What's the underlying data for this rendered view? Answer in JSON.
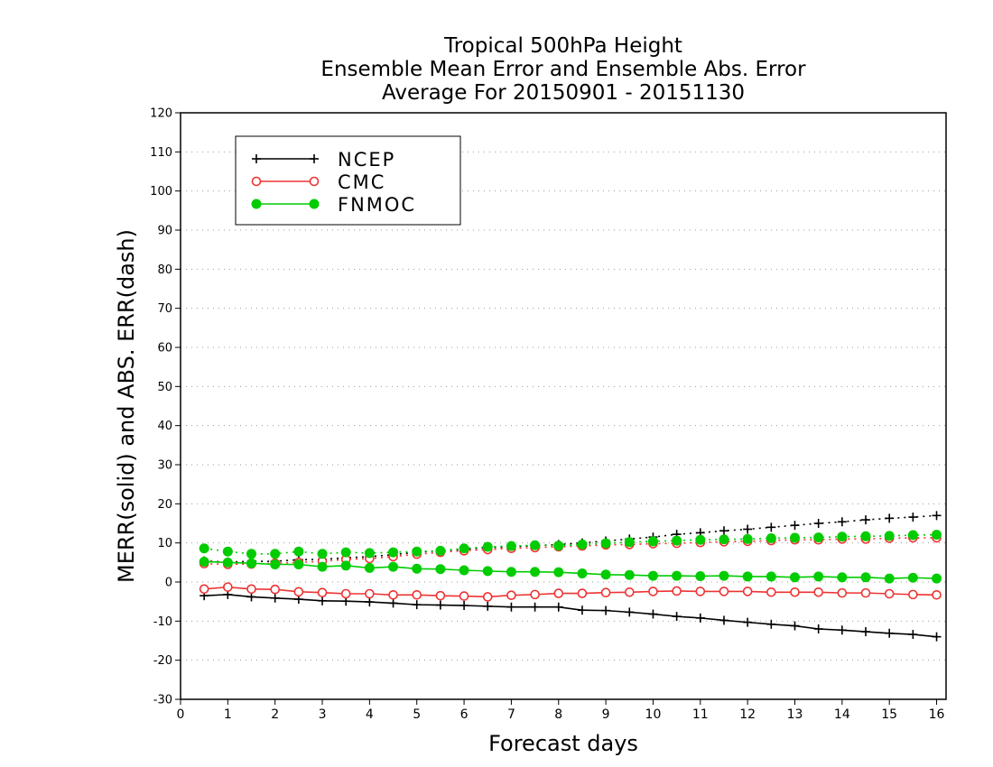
{
  "chart_data": {
    "type": "line",
    "title_lines": [
      "Tropical 500hPa Height",
      "Ensemble Mean Error and Ensemble Abs. Error",
      "Average For 20150901 - 20151130"
    ],
    "xlabel": "Forecast days",
    "ylabel": "MERR(solid) and ABS. ERR(dash)",
    "xlim": [
      0,
      16.2
    ],
    "ylim": [
      -30,
      120
    ],
    "xticks": [
      0,
      1,
      2,
      3,
      4,
      5,
      6,
      7,
      8,
      9,
      10,
      11,
      12,
      13,
      14,
      15,
      16
    ],
    "yticks": [
      -30,
      -20,
      -10,
      0,
      10,
      20,
      30,
      40,
      50,
      60,
      70,
      80,
      90,
      100,
      110,
      120
    ],
    "grid": "horizontal dotted",
    "legend_position": "top-left",
    "x": [
      0.5,
      1.0,
      1.5,
      2.0,
      2.5,
      3.0,
      3.5,
      4.0,
      4.5,
      5.0,
      5.5,
      6.0,
      6.5,
      7.0,
      7.5,
      8.0,
      8.5,
      9.0,
      9.5,
      10.0,
      10.5,
      11.0,
      11.5,
      12.0,
      12.5,
      13.0,
      13.5,
      14.0,
      14.5,
      15.0,
      15.5,
      16.0
    ],
    "series": [
      {
        "name": "NCEP",
        "color": "#000000",
        "marker": "plus",
        "merr": [
          -3.5,
          -3.2,
          -3.8,
          -4.1,
          -4.4,
          -4.8,
          -4.9,
          -5.1,
          -5.4,
          -5.8,
          -5.9,
          -6.0,
          -6.2,
          -6.4,
          -6.4,
          -6.4,
          -7.2,
          -7.3,
          -7.7,
          -8.2,
          -8.8,
          -9.2,
          -9.8,
          -10.3,
          -10.8,
          -11.2,
          -12.0,
          -12.3,
          -12.7,
          -13.1,
          -13.4,
          -14.0
        ],
        "abs_err": [
          5.4,
          5.1,
          5.3,
          5.3,
          5.7,
          5.8,
          6.2,
          6.5,
          7.0,
          7.6,
          8.0,
          8.4,
          8.8,
          9.0,
          9.3,
          9.6,
          10.0,
          10.5,
          11.0,
          11.5,
          12.2,
          12.6,
          13.1,
          13.5,
          14.0,
          14.5,
          15.0,
          15.4,
          15.9,
          16.3,
          16.6,
          17.0
        ]
      },
      {
        "name": "CMC",
        "color": "#ee3333",
        "marker": "open-circle",
        "merr": [
          -1.8,
          -1.3,
          -1.8,
          -1.9,
          -2.5,
          -2.7,
          -3.0,
          -3.0,
          -3.3,
          -3.3,
          -3.5,
          -3.6,
          -3.8,
          -3.4,
          -3.2,
          -2.9,
          -2.9,
          -2.7,
          -2.6,
          -2.4,
          -2.3,
          -2.4,
          -2.4,
          -2.4,
          -2.6,
          -2.6,
          -2.6,
          -2.8,
          -2.8,
          -3.0,
          -3.2,
          -3.3
        ],
        "abs_err": [
          4.7,
          4.5,
          4.6,
          4.8,
          5.0,
          5.3,
          5.8,
          6.0,
          6.5,
          7.1,
          7.6,
          8.0,
          8.3,
          8.6,
          8.8,
          9.0,
          9.2,
          9.5,
          9.6,
          9.8,
          9.9,
          10.1,
          10.3,
          10.4,
          10.6,
          10.8,
          10.8,
          11.0,
          11.0,
          11.2,
          11.3,
          11.3
        ]
      },
      {
        "name": "FNMOC",
        "color": "#00cc00",
        "marker": "filled-circle",
        "merr": [
          5.2,
          5.0,
          4.8,
          4.5,
          4.5,
          3.9,
          4.2,
          3.6,
          3.9,
          3.4,
          3.3,
          3.0,
          2.8,
          2.6,
          2.6,
          2.5,
          2.2,
          1.9,
          1.8,
          1.6,
          1.6,
          1.5,
          1.6,
          1.4,
          1.4,
          1.2,
          1.4,
          1.2,
          1.2,
          0.9,
          1.1,
          0.9
        ],
        "abs_err": [
          8.6,
          7.8,
          7.2,
          7.2,
          7.8,
          7.2,
          7.6,
          7.4,
          7.6,
          7.8,
          8.0,
          8.6,
          9.0,
          9.2,
          9.4,
          9.3,
          9.6,
          9.9,
          10.2,
          10.4,
          10.6,
          10.8,
          10.9,
          11.0,
          11.2,
          11.3,
          11.4,
          11.6,
          11.7,
          11.8,
          12.0,
          12.1
        ]
      }
    ]
  }
}
